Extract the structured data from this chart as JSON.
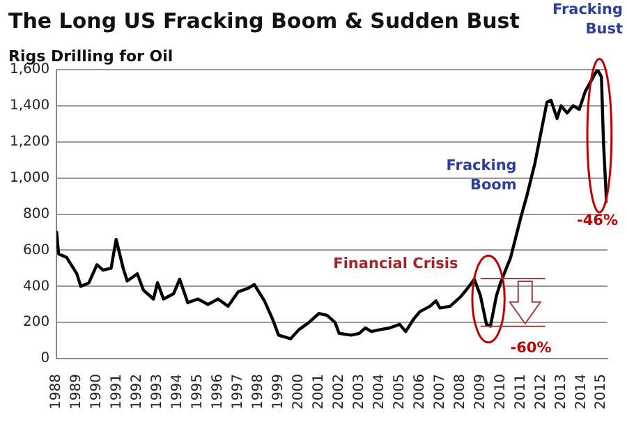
{
  "chart_data": {
    "type": "line",
    "title": "The Long US Fracking Boom & Sudden Bust",
    "ylabel": "Rigs Drilling for Oil",
    "series": [
      {
        "color": "#000000",
        "x": [
          1988.0,
          1988.1,
          1988.5,
          1989.0,
          1989.2,
          1989.6,
          1990.0,
          1990.3,
          1990.7,
          1990.95,
          1991.3,
          1991.5,
          1992.0,
          1992.3,
          1992.8,
          1993.0,
          1993.3,
          1993.8,
          1994.1,
          1994.5,
          1995.0,
          1995.5,
          1996.0,
          1996.5,
          1997.0,
          1997.5,
          1997.8,
          1998.3,
          1998.7,
          1999.0,
          1999.3,
          1999.6,
          2000.0,
          2000.5,
          2001.0,
          2001.4,
          2001.8,
          2002.0,
          2002.6,
          2003.0,
          2003.3,
          2003.6,
          2004.0,
          2004.5,
          2005.0,
          2005.3,
          2005.7,
          2006.0,
          2006.5,
          2006.8,
          2007.0,
          2007.5,
          2008.0,
          2008.3,
          2008.7,
          2009.0,
          2009.3,
          2009.5,
          2009.8,
          2010.0,
          2010.5,
          2011.0,
          2011.3,
          2011.7,
          2012.0,
          2012.3,
          2012.5,
          2012.8,
          2013.0,
          2013.3,
          2013.6,
          2013.9,
          2014.2,
          2014.6,
          2014.8,
          2015.0,
          2015.1,
          2015.25
        ],
        "values": [
          700,
          580,
          560,
          470,
          400,
          420,
          520,
          490,
          500,
          660,
          500,
          430,
          470,
          380,
          330,
          420,
          330,
          360,
          440,
          310,
          330,
          300,
          330,
          290,
          370,
          390,
          410,
          320,
          220,
          130,
          120,
          110,
          160,
          200,
          250,
          240,
          200,
          140,
          130,
          140,
          170,
          150,
          160,
          170,
          190,
          150,
          220,
          260,
          290,
          320,
          280,
          290,
          340,
          380,
          440,
          350,
          190,
          180,
          350,
          420,
          560,
          780,
          900,
          1080,
          1250,
          1420,
          1430,
          1330,
          1400,
          1360,
          1400,
          1380,
          1480,
          1560,
          1600,
          1560,
          1200,
          870
        ]
      }
    ],
    "xlim": [
      1988,
      2015.3
    ],
    "xticks": [
      1988,
      1989,
      1990,
      1991,
      1992,
      1993,
      1994,
      1995,
      1996,
      1997,
      1998,
      1999,
      2000,
      2001,
      2002,
      2003,
      2004,
      2005,
      2006,
      2007,
      2008,
      2009,
      2010,
      2011,
      2012,
      2013,
      2014,
      2015
    ],
    "ylim": [
      0,
      1600
    ],
    "yticks": [
      0,
      {
        "value": 200,
        "label": "200"
      },
      {
        "value": 400,
        "label": "400"
      },
      {
        "value": 600,
        "label": "600"
      },
      {
        "value": 800,
        "label": "800"
      },
      {
        "value": 1000,
        "label": "1,000"
      },
      {
        "value": 1200,
        "label": "1,200"
      },
      {
        "value": 1400,
        "label": "1,400"
      },
      {
        "value": 1600,
        "label": "1,600"
      }
    ],
    "grid": "y",
    "marker": "none",
    "line_style": "solid",
    "legend": false,
    "annotations": [
      {
        "text": "Fracking Bust",
        "x": 2014.8,
        "y": 1600
      },
      "Fracking Boom",
      "Financial Crisis",
      "-46%",
      {
        "text": "-60%",
        "x": 2009.5,
        "y": 180
      }
    ]
  }
}
